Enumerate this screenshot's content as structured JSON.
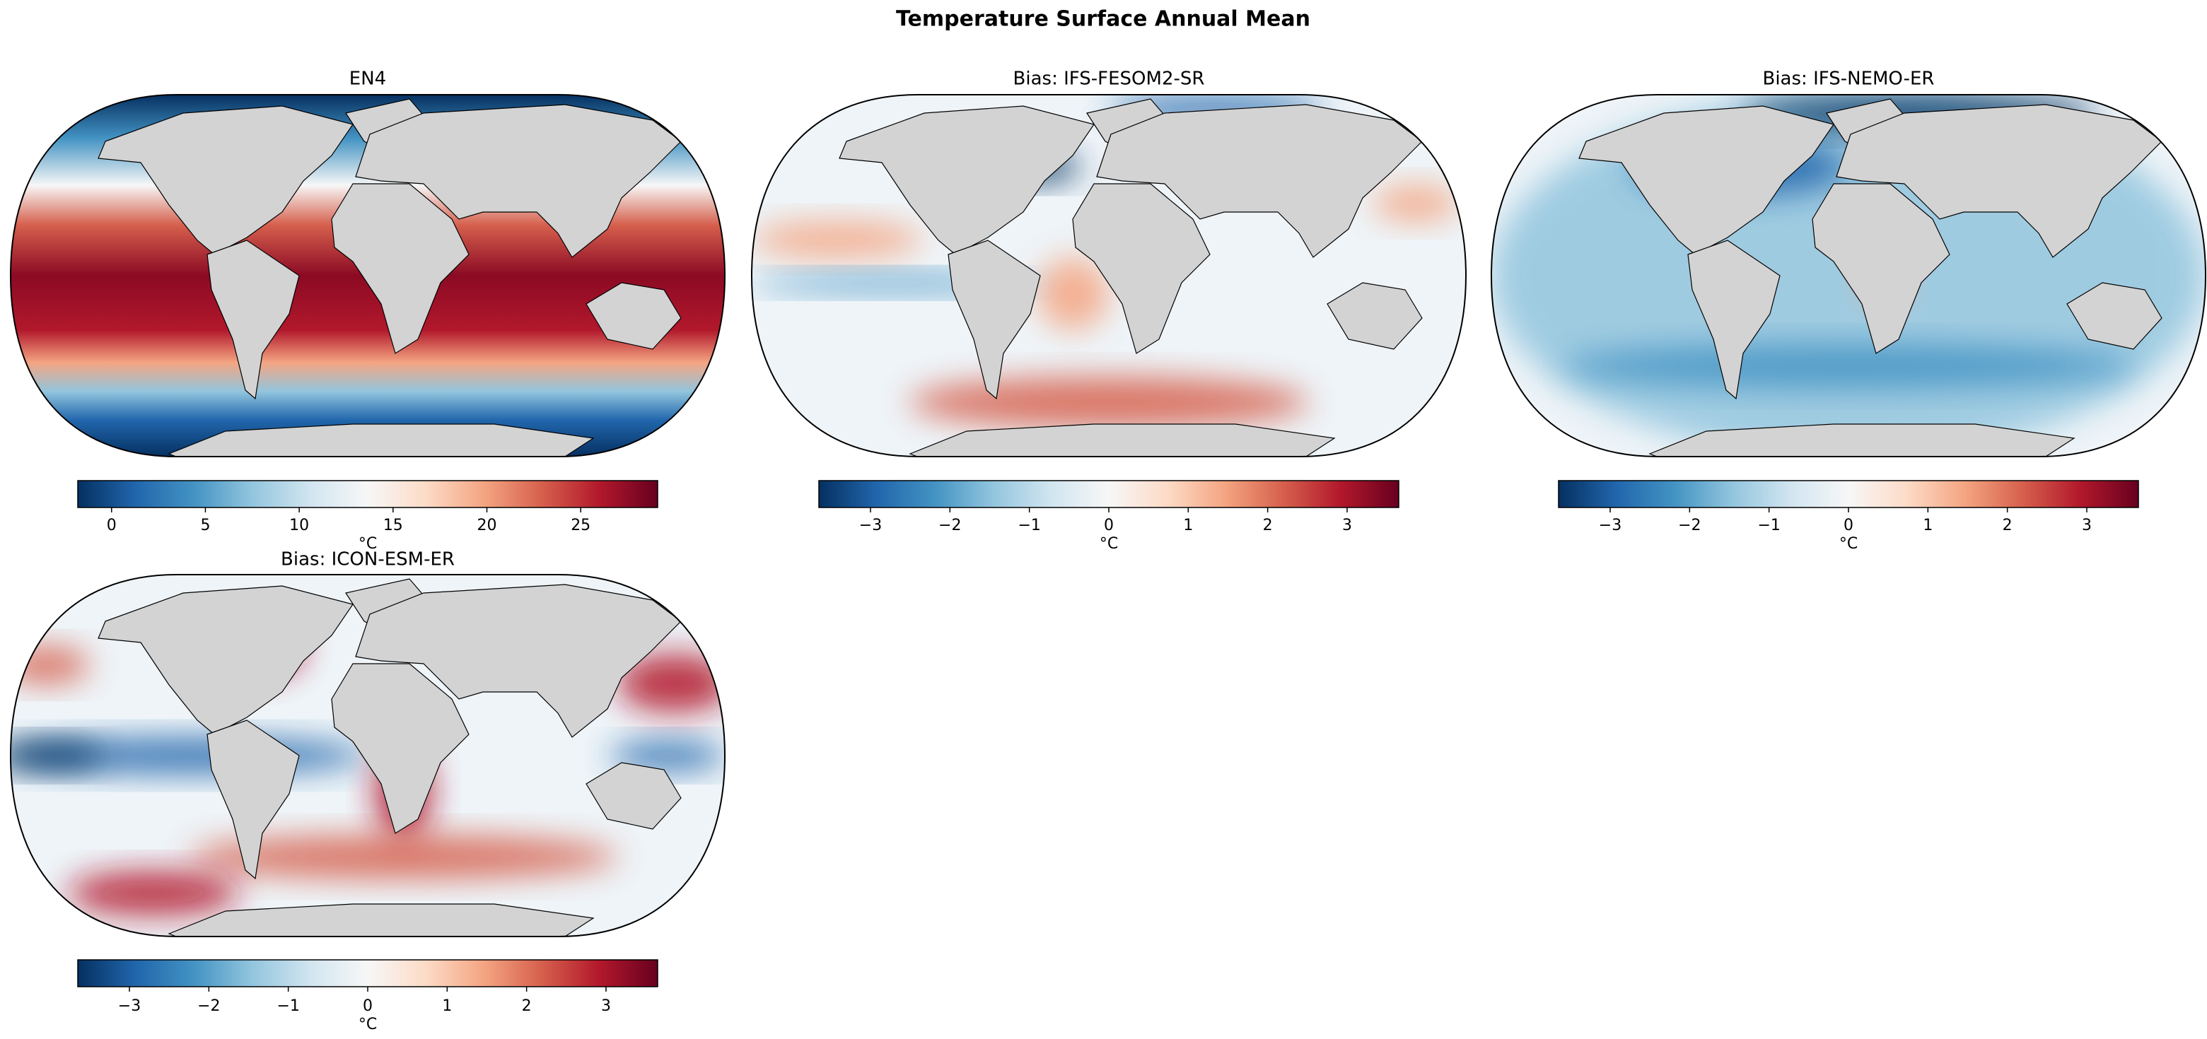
{
  "title": "Temperature Surface Annual Mean",
  "chart_data": [
    {
      "type": "map",
      "title": "EN4",
      "cmap": [
        "#053061",
        "#2166ac",
        "#4393c3",
        "#92c5de",
        "#d1e5f0",
        "#f7f7f7",
        "#fddbc7",
        "#f4a582",
        "#d6604d",
        "#b2182b",
        "#67001f"
      ],
      "clim": [
        -1.8,
        29.1
      ],
      "cticks": [
        0,
        5,
        10,
        15,
        20,
        25
      ],
      "cbar_label": "°C"
    },
    {
      "type": "map",
      "title": "Bias: IFS-FESOM2-SR",
      "cmap": [
        "#053061",
        "#2166ac",
        "#4393c3",
        "#92c5de",
        "#d1e5f0",
        "#f7f7f7",
        "#fddbc7",
        "#f4a582",
        "#d6604d",
        "#b2182b",
        "#67001f"
      ],
      "clim": [
        -3.65,
        3.65
      ],
      "cticks": [
        {
          "value": -3,
          "label": "−3"
        },
        {
          "value": -2,
          "label": "−2"
        },
        {
          "value": -1,
          "label": "−1"
        },
        0,
        1,
        2,
        3
      ],
      "cbar_label": "°C"
    },
    {
      "type": "map",
      "title": "Bias: IFS-NEMO-ER",
      "cmap": [
        "#053061",
        "#2166ac",
        "#4393c3",
        "#92c5de",
        "#d1e5f0",
        "#f7f7f7",
        "#fddbc7",
        "#f4a582",
        "#d6604d",
        "#b2182b",
        "#67001f"
      ],
      "clim": [
        -3.65,
        3.65
      ],
      "cticks": [
        {
          "value": -3,
          "label": "−3"
        },
        {
          "value": -2,
          "label": "−2"
        },
        {
          "value": -1,
          "label": "−1"
        },
        0,
        1,
        2,
        3
      ],
      "cbar_label": "°C"
    },
    {
      "type": "map",
      "title": "Bias: ICON-ESM-ER",
      "cmap": [
        "#053061",
        "#2166ac",
        "#4393c3",
        "#92c5de",
        "#d1e5f0",
        "#f7f7f7",
        "#fddbc7",
        "#f4a582",
        "#d6604d",
        "#b2182b",
        "#67001f"
      ],
      "clim": [
        -3.65,
        3.65
      ],
      "cticks": [
        {
          "value": -3,
          "label": "−3"
        },
        {
          "value": -2,
          "label": "−2"
        },
        {
          "value": -1,
          "label": "−1"
        },
        0,
        1,
        2,
        3
      ],
      "cbar_label": "°C"
    }
  ]
}
